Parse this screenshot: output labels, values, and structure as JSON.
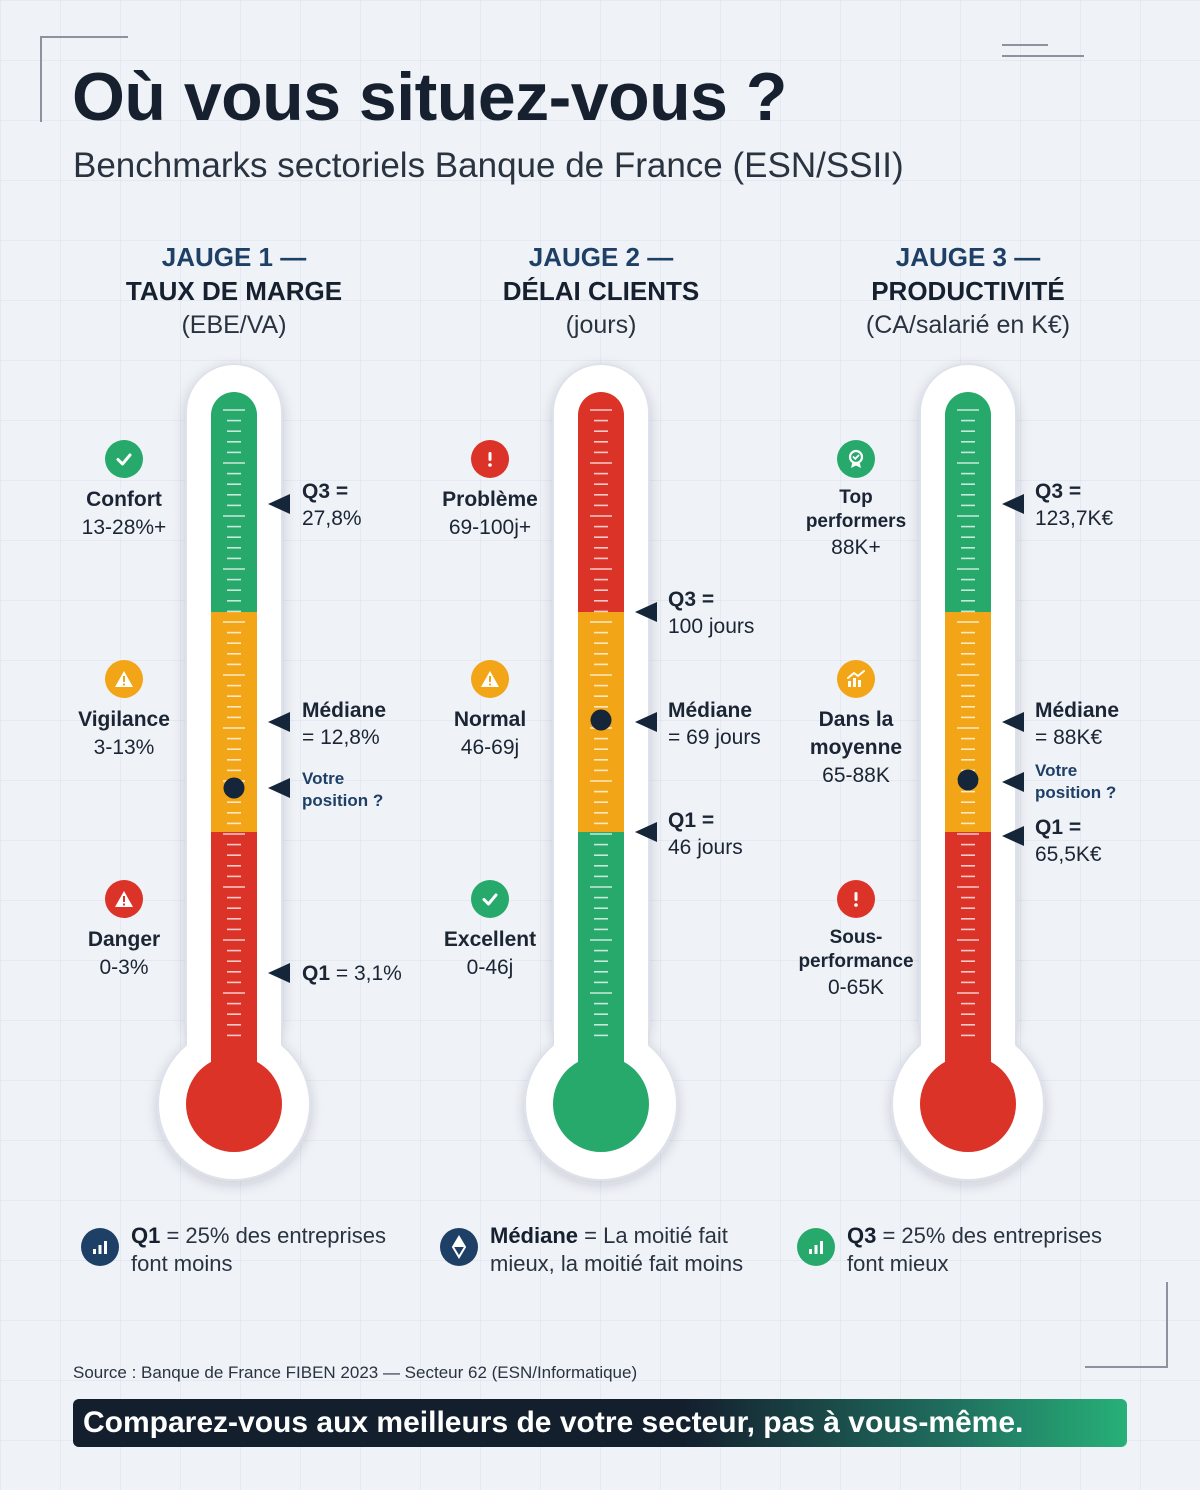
{
  "title": "Où vous situez-vous ?",
  "subtitle": "Benchmarks sectoriels Banque de France (ESN/SSII)",
  "colors": {
    "green": "#27a96c",
    "orange": "#f2a516",
    "red": "#dc3328",
    "navy": "#1e3f66",
    "marker": "#16263a"
  },
  "gauges": [
    {
      "line1": "JAUGE 1 —",
      "line2": "TAUX DE MARGE",
      "line3": "(EBE/VA)",
      "order": [
        "green",
        "orange",
        "red"
      ],
      "bulb": "red",
      "zones": [
        {
          "icon": "check-icon",
          "color": "green",
          "name": "Confort",
          "range": "13-28%+"
        },
        {
          "icon": "warning-icon",
          "color": "orange",
          "name": "Vigilance",
          "range": "3-13%"
        },
        {
          "icon": "warning-icon",
          "color": "red",
          "name": "Danger",
          "range": "0-3%"
        }
      ],
      "markers": [
        {
          "bold": "Q3 =",
          "text": "27,8%"
        },
        {
          "bold": "Médiane",
          "text": "= 12,8%"
        },
        {
          "bold": "Votre",
          "text": "position ?"
        },
        {
          "bold": "Q1",
          "text": " = 3,1%"
        }
      ]
    },
    {
      "line1": "JAUGE 2 —",
      "line2": "DÉLAI CLIENTS",
      "line3": "(jours)",
      "order": [
        "red",
        "orange",
        "green"
      ],
      "bulb": "green",
      "zones": [
        {
          "icon": "exclamation-icon",
          "color": "red",
          "name": "Problème",
          "range": "69-100j+"
        },
        {
          "icon": "warning-icon",
          "color": "orange",
          "name": "Normal",
          "range": "46-69j"
        },
        {
          "icon": "check-icon",
          "color": "green",
          "name": "Excellent",
          "range": "0-46j"
        }
      ],
      "markers": [
        {
          "bold": "Q3 =",
          "text": "100 jours"
        },
        {
          "bold": "Médiane",
          "text": "= 69 jours"
        },
        {
          "bold": "Q1 =",
          "text": "46 jours"
        }
      ]
    },
    {
      "line1": "JAUGE 3 —",
      "line2": "PRODUCTIVITÉ",
      "line3": "(CA/salarié en K€)",
      "order": [
        "green",
        "orange",
        "red"
      ],
      "bulb": "red",
      "zones": [
        {
          "icon": "award-icon",
          "color": "green",
          "name1": "Top",
          "name2": "performers",
          "range": "88K+"
        },
        {
          "icon": "chart-up-icon",
          "color": "orange",
          "name1": "Dans la",
          "name2": "moyenne",
          "range": "65-88K"
        },
        {
          "icon": "exclamation-icon",
          "color": "red",
          "name1": "Sous-",
          "name2": "performance",
          "range": "0-65K"
        }
      ],
      "markers": [
        {
          "bold": "Q3 =",
          "text": "123,7K€"
        },
        {
          "bold": "Médiane",
          "text": "= 88K€"
        },
        {
          "bold": "Votre",
          "text": "position ?"
        },
        {
          "bold": "Q1 =",
          "text": "65,5K€"
        }
      ]
    }
  ],
  "legend": [
    {
      "icon": "bar-chart-icon",
      "bold": "Q1",
      "rest1": " = 25% des entreprises",
      "rest2": "font moins"
    },
    {
      "icon": "diamond-icon",
      "bold": "Médiane",
      "rest1": " = La moitié fait",
      "rest2": "mieux, la moitié fait moins"
    },
    {
      "icon": "bar-chart-icon",
      "bold": "Q3",
      "rest1": " = 25% des entreprises",
      "rest2": "font mieux"
    }
  ],
  "source": "Source : Banque de France FIBEN 2023 — Secteur 62 (ESN/Informatique)",
  "banner": "Comparez-vous aux meilleurs de votre secteur, pas à vous-même."
}
